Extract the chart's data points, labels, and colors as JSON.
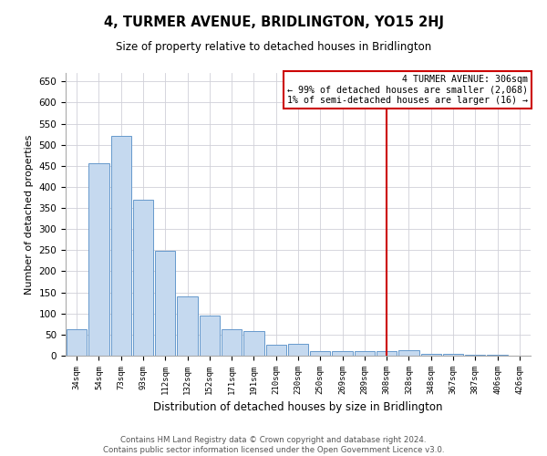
{
  "title": "4, TURMER AVENUE, BRIDLINGTON, YO15 2HJ",
  "subtitle": "Size of property relative to detached houses in Bridlington",
  "xlabel": "Distribution of detached houses by size in Bridlington",
  "ylabel": "Number of detached properties",
  "bar_labels": [
    "34sqm",
    "54sqm",
    "73sqm",
    "93sqm",
    "112sqm",
    "132sqm",
    "152sqm",
    "171sqm",
    "191sqm",
    "210sqm",
    "230sqm",
    "250sqm",
    "269sqm",
    "289sqm",
    "308sqm",
    "328sqm",
    "348sqm",
    "367sqm",
    "387sqm",
    "406sqm",
    "426sqm"
  ],
  "bar_heights": [
    62,
    455,
    521,
    370,
    249,
    141,
    95,
    62,
    58,
    27,
    28,
    10,
    10,
    10,
    10,
    12,
    5,
    5,
    2,
    2,
    1
  ],
  "bar_color": "#c5d9ef",
  "bar_edge_color": "#6699cc",
  "vline_x": 14,
  "vline_color": "#cc0000",
  "annotation_title": "4 TURMER AVENUE: 306sqm",
  "annotation_line1": "← 99% of detached houses are smaller (2,068)",
  "annotation_line2": "1% of semi-detached houses are larger (16) →",
  "annotation_box_color": "#ffffff",
  "annotation_box_edge_color": "#cc0000",
  "ylim": [
    0,
    670
  ],
  "yticks": [
    0,
    50,
    100,
    150,
    200,
    250,
    300,
    350,
    400,
    450,
    500,
    550,
    600,
    650
  ],
  "footer_line1": "Contains HM Land Registry data © Crown copyright and database right 2024.",
  "footer_line2": "Contains public sector information licensed under the Open Government Licence v3.0.",
  "bg_color": "#ffffff",
  "grid_color": "#d0d0d8"
}
